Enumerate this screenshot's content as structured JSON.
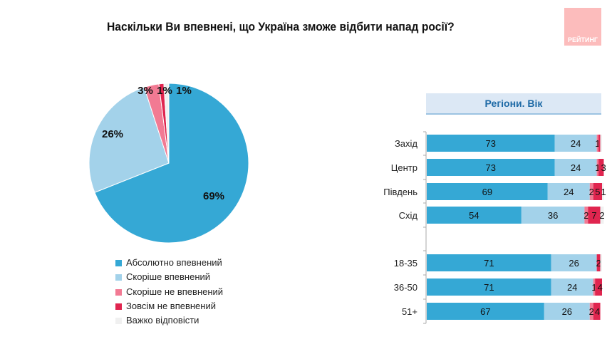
{
  "title": "Наскільки Ви впевнені, що Україна зможе відбити напад росії?",
  "logo_text": "РЕЙТИНГ",
  "panel_title": "Регіони. Вік",
  "colors": [
    "#35a8d5",
    "#a3d2ea",
    "#f27a93",
    "#e0254f",
    "#f0f0f0"
  ],
  "chart_data": [
    {
      "type": "pie",
      "categories": [
        "Абсолютно впевнений",
        "Скоріше впевнений",
        "Скоріше не впевнений",
        "Зовсім не впевнений",
        "Важко відповісти"
      ],
      "values": [
        69,
        26,
        3,
        1,
        1
      ],
      "labels": [
        "69%",
        "26%",
        "3%",
        "1%",
        "1%"
      ],
      "legend_placement": "bottom"
    },
    {
      "type": "bar",
      "stacked": true,
      "orientation": "horizontal",
      "xlim": [
        0,
        100
      ],
      "rows": [
        {
          "label": "Захід",
          "values": [
            73,
            24,
            1,
            1,
            1
          ],
          "labels": [
            "73",
            "24",
            "1",
            "",
            ""
          ]
        },
        {
          "label": "Центр",
          "values": [
            73,
            24,
            1,
            3,
            0
          ],
          "labels": [
            "73",
            "24",
            "1",
            "3",
            ""
          ]
        },
        {
          "label": "Південь",
          "values": [
            69,
            24,
            2,
            5,
            1
          ],
          "labels": [
            "69",
            "24",
            "2",
            "5",
            "1"
          ]
        },
        {
          "label": "Схід",
          "values": [
            54,
            36,
            2,
            7,
            2
          ],
          "labels": [
            "54",
            "36",
            "2",
            "7",
            "2"
          ]
        },
        {
          "label": "18-35",
          "values": [
            71,
            26,
            0,
            2,
            1
          ],
          "labels": [
            "71",
            "26",
            "",
            "2",
            ""
          ]
        },
        {
          "label": "36-50",
          "values": [
            71,
            24,
            1,
            4,
            0
          ],
          "labels": [
            "71",
            "24",
            "1",
            "4",
            ""
          ]
        },
        {
          "label": "51+",
          "values": [
            67,
            26,
            2,
            4,
            0
          ],
          "labels": [
            "67",
            "26",
            "2",
            "4",
            ""
          ]
        }
      ]
    }
  ]
}
